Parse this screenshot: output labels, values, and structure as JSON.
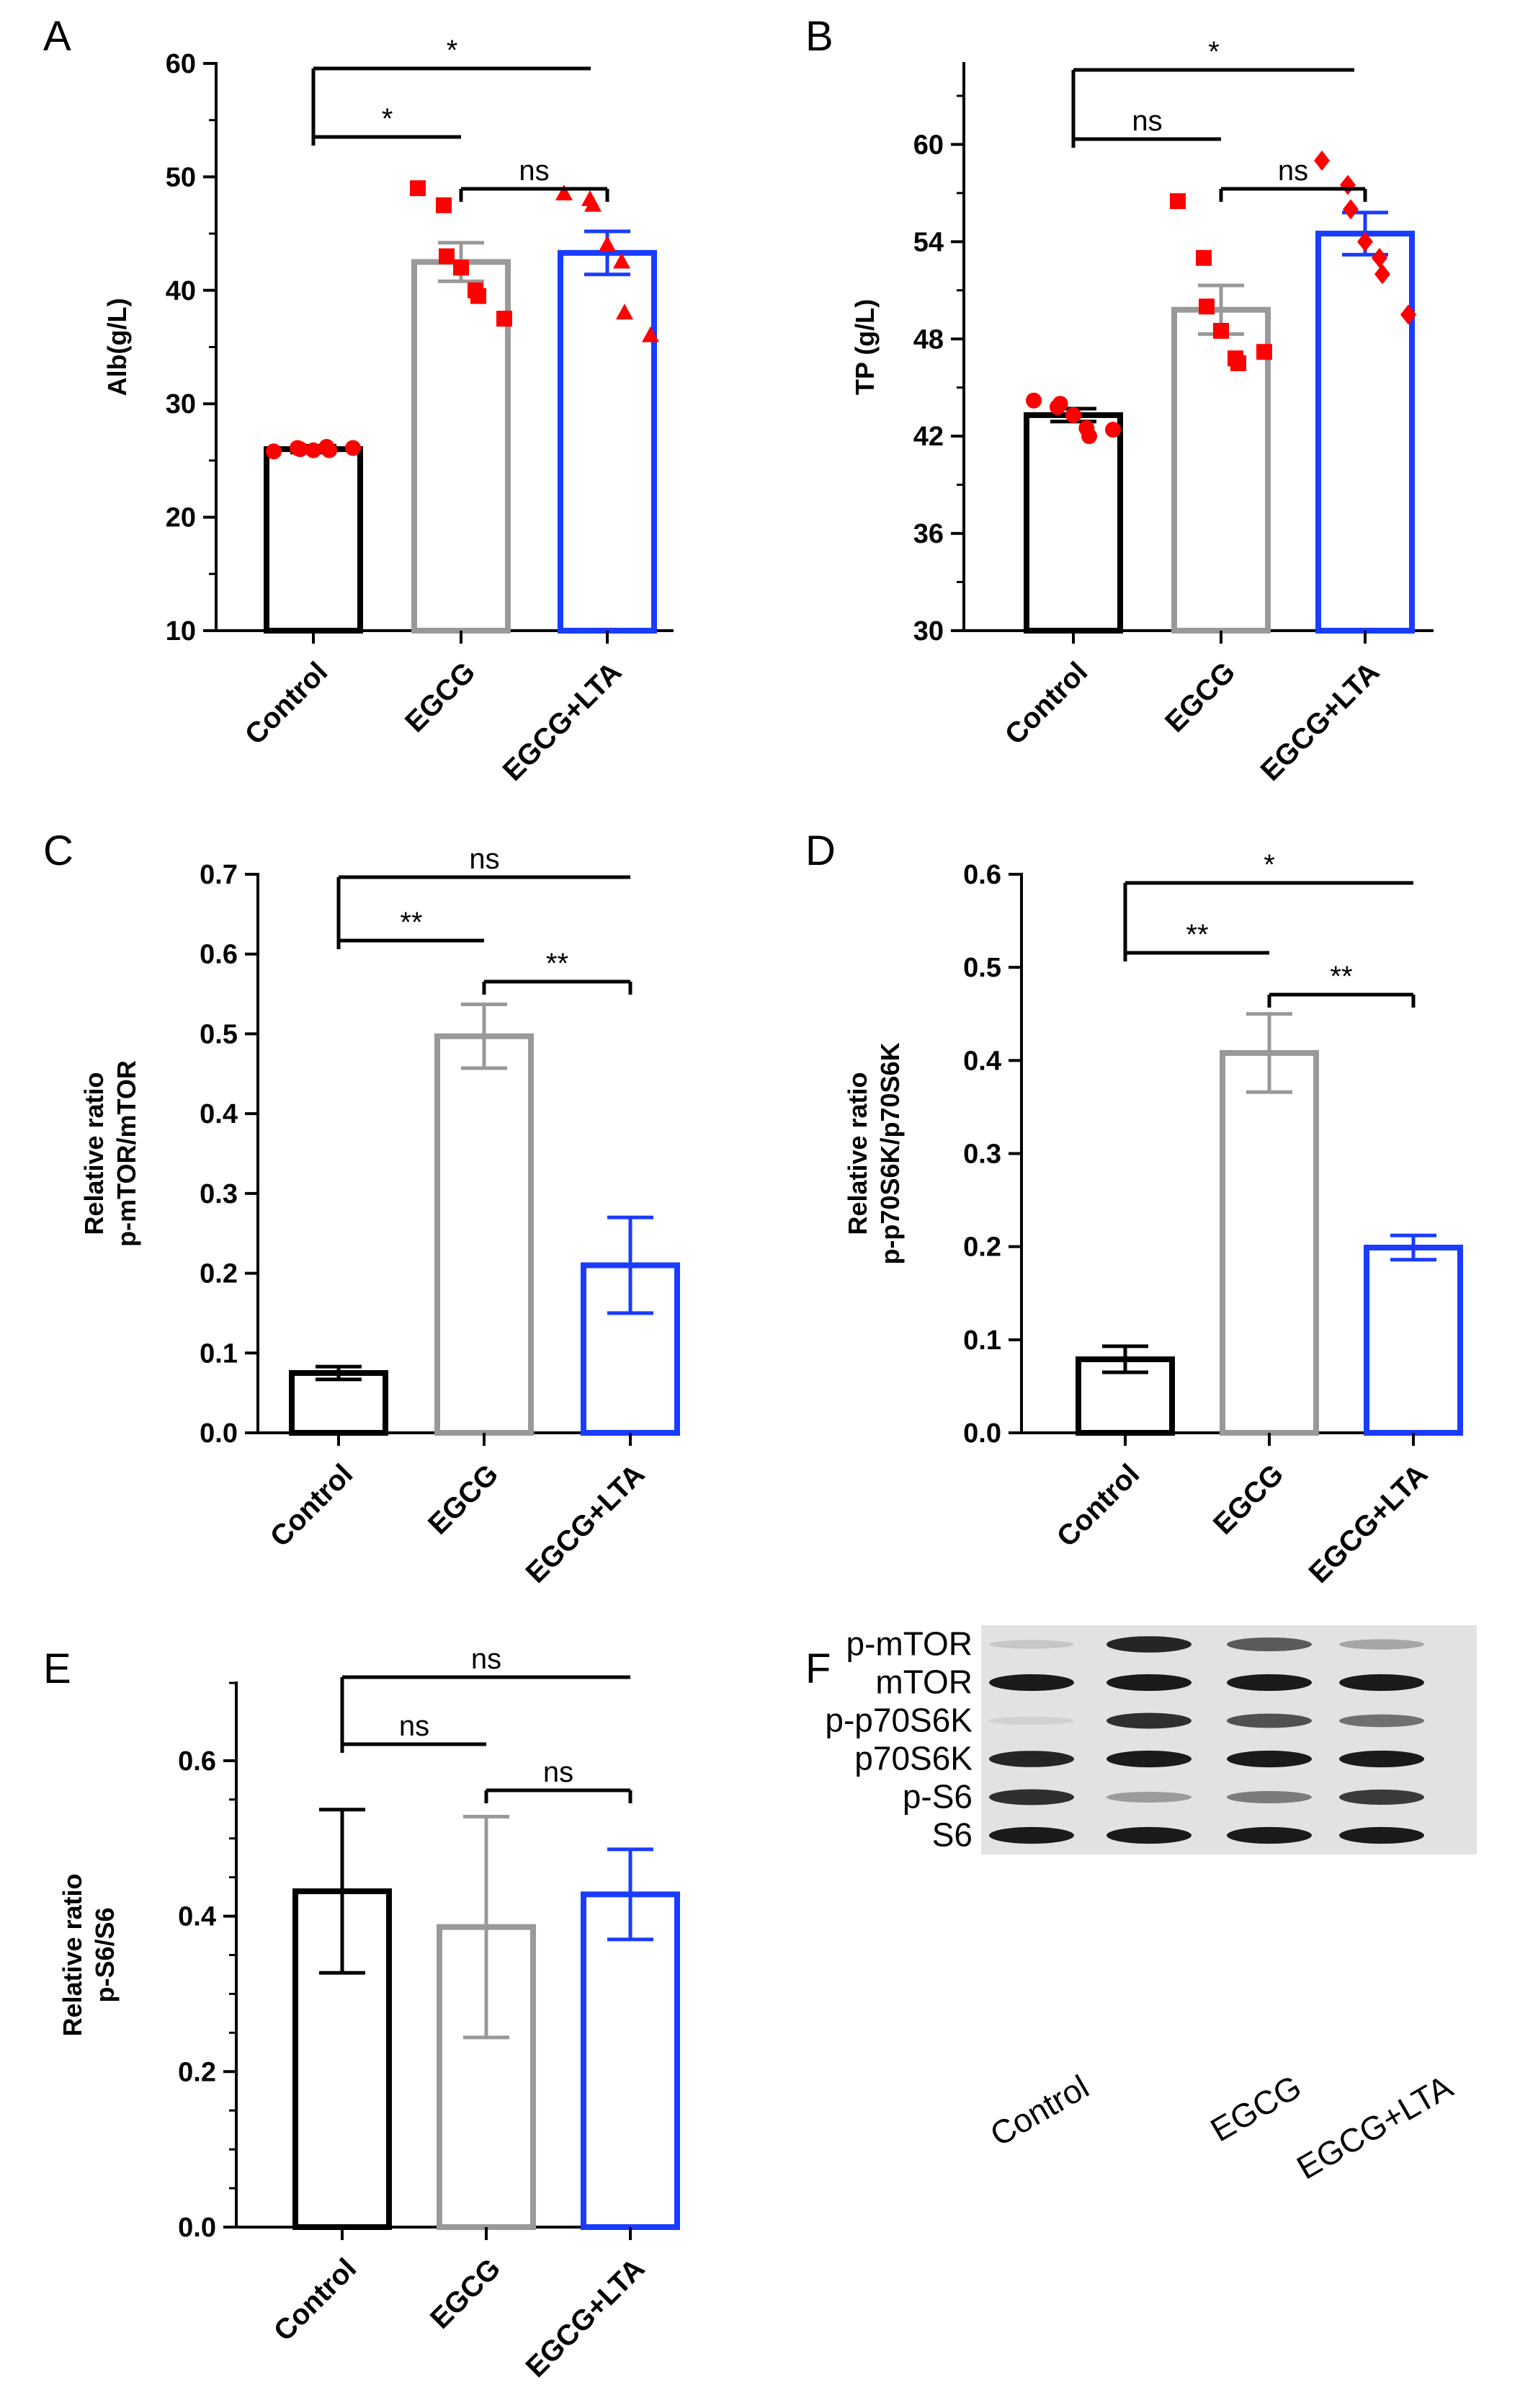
{
  "chart_data": [
    {
      "panel": "A",
      "type": "bar",
      "categories": [
        "Control",
        "EGCG",
        "EGCG+LTA"
      ],
      "ylabel": "Alb(g/L)",
      "ylim": [
        10,
        60
      ],
      "yticks": [
        10,
        20,
        30,
        40,
        50,
        60
      ],
      "minor_ticks": true,
      "values": [
        26.0,
        42.5,
        43.3
      ],
      "sem": [
        0.3,
        1.7,
        1.9
      ],
      "colors": [
        "#000000",
        "#999999",
        "#1a3cff"
      ],
      "points": [
        {
          "group": 0,
          "y": [
            25.8,
            26.1,
            26.0,
            25.9,
            26.2,
            25.9,
            26.1
          ],
          "marker": "circle",
          "color": "#ff0000"
        },
        {
          "group": 1,
          "y": [
            49.0,
            47.5,
            43.0,
            42.0,
            40.0,
            39.5,
            37.5
          ],
          "marker": "square",
          "color": "#ff0000"
        },
        {
          "group": 2,
          "y": [
            48.5,
            48.0,
            47.5,
            44.0,
            42.5,
            38.0,
            36.0
          ],
          "marker": "triangle",
          "color": "#ff0000"
        }
      ],
      "significance": [
        {
          "from": 0,
          "to": 2,
          "label": "*"
        },
        {
          "from": 0,
          "to": 1,
          "label": "*"
        },
        {
          "from": 1,
          "to": 2,
          "label": "ns"
        }
      ]
    },
    {
      "panel": "B",
      "type": "bar",
      "categories": [
        "Control",
        "EGCG",
        "EGCG+LTA"
      ],
      "ylabel": "TP (g/L)",
      "ylim": [
        30,
        65
      ],
      "yticks": [
        30,
        36,
        42,
        48,
        54,
        60
      ],
      "minor_ticks": true,
      "values": [
        43.3,
        49.8,
        54.5
      ],
      "sem": [
        0.4,
        1.5,
        1.3
      ],
      "colors": [
        "#000000",
        "#999999",
        "#1a3cff"
      ],
      "points": [
        {
          "group": 0,
          "y": [
            44.2,
            43.8,
            44.0,
            43.3,
            42.5,
            42.0,
            42.4
          ],
          "marker": "circle",
          "color": "#ff0000"
        },
        {
          "group": 1,
          "y": [
            56.5,
            53.0,
            50.0,
            48.5,
            46.8,
            46.5,
            47.2
          ],
          "marker": "square",
          "color": "#ff0000"
        },
        {
          "group": 2,
          "y": [
            59.0,
            57.5,
            56.0,
            54.0,
            53.0,
            52.0,
            49.5
          ],
          "marker": "diamond",
          "color": "#ff0000"
        }
      ],
      "significance": [
        {
          "from": 0,
          "to": 2,
          "label": "*"
        },
        {
          "from": 0,
          "to": 1,
          "label": "ns"
        },
        {
          "from": 1,
          "to": 2,
          "label": "ns"
        }
      ]
    },
    {
      "panel": "C",
      "type": "bar",
      "categories": [
        "Control",
        "EGCG",
        "EGCG+LTA"
      ],
      "ylabel_lines": [
        "Relative ratio",
        "p-mTOR/mTOR"
      ],
      "ylim": [
        0,
        0.7
      ],
      "yticks": [
        0.0,
        0.1,
        0.2,
        0.3,
        0.4,
        0.5,
        0.6,
        0.7
      ],
      "ytick_labels": [
        "0.0",
        "0.1",
        "0.2",
        "0.3",
        "0.4",
        "0.5",
        "0.6",
        "0.7"
      ],
      "values": [
        0.075,
        0.497,
        0.21
      ],
      "err": [
        0.008,
        0.04,
        0.06
      ],
      "colors": [
        "#000000",
        "#999999",
        "#1a3cff"
      ],
      "significance": [
        {
          "from": 0,
          "to": 2,
          "label": "ns"
        },
        {
          "from": 0,
          "to": 1,
          "label": "**"
        },
        {
          "from": 1,
          "to": 2,
          "label": "**"
        }
      ]
    },
    {
      "panel": "D",
      "type": "bar",
      "categories": [
        "Control",
        "EGCG",
        "EGCG+LTA"
      ],
      "ylabel_lines": [
        "Relative ratio",
        "p-p70S6K/p70S6K"
      ],
      "ylim": [
        0,
        0.6
      ],
      "yticks": [
        0.0,
        0.1,
        0.2,
        0.3,
        0.4,
        0.5,
        0.6
      ],
      "ytick_labels": [
        "0.0",
        "0.1",
        "0.2",
        "0.3",
        "0.4",
        "0.5",
        "0.6"
      ],
      "values": [
        0.079,
        0.408,
        0.199
      ],
      "err": [
        0.014,
        0.042,
        0.013
      ],
      "colors": [
        "#000000",
        "#999999",
        "#1a3cff"
      ],
      "significance": [
        {
          "from": 0,
          "to": 2,
          "label": "*"
        },
        {
          "from": 0,
          "to": 1,
          "label": "**"
        },
        {
          "from": 1,
          "to": 2,
          "label": "**"
        }
      ]
    },
    {
      "panel": "E",
      "type": "bar",
      "categories": [
        "Control",
        "EGCG",
        "EGCG+LTA"
      ],
      "ylabel_lines": [
        "Relative ratio",
        "p-S6/S6"
      ],
      "ylim": [
        0,
        0.7
      ],
      "yticks": [
        0.0,
        0.2,
        0.4,
        0.6
      ],
      "ytick_labels": [
        "0.0",
        "0.2",
        "0.4",
        "0.6"
      ],
      "minor_ticks": true,
      "values": [
        0.432,
        0.386,
        0.428
      ],
      "err": [
        0.105,
        0.142,
        0.058
      ],
      "colors": [
        "#000000",
        "#999999",
        "#1a3cff"
      ],
      "significance": [
        {
          "from": 0,
          "to": 2,
          "label": "ns"
        },
        {
          "from": 0,
          "to": 1,
          "label": "ns"
        },
        {
          "from": 1,
          "to": 2,
          "label": "ns"
        }
      ]
    },
    {
      "panel": "F",
      "type": "western_blot",
      "rows": [
        "p-mTOR",
        "mTOR",
        "p-p70S6K",
        "p70S6K",
        "p-S6",
        "S6"
      ],
      "lanes": [
        "Control",
        "EGCG",
        "EGCG+LTA"
      ],
      "lane_groups": [
        0,
        1,
        1,
        2
      ],
      "band_intensity": [
        [
          0.15,
          0.9,
          0.65,
          0.3
        ],
        [
          0.95,
          0.95,
          0.95,
          0.95
        ],
        [
          0.1,
          0.85,
          0.7,
          0.55
        ],
        [
          0.9,
          0.95,
          0.95,
          0.95
        ],
        [
          0.85,
          0.35,
          0.5,
          0.8
        ],
        [
          0.95,
          0.95,
          0.95,
          0.95
        ]
      ]
    }
  ]
}
